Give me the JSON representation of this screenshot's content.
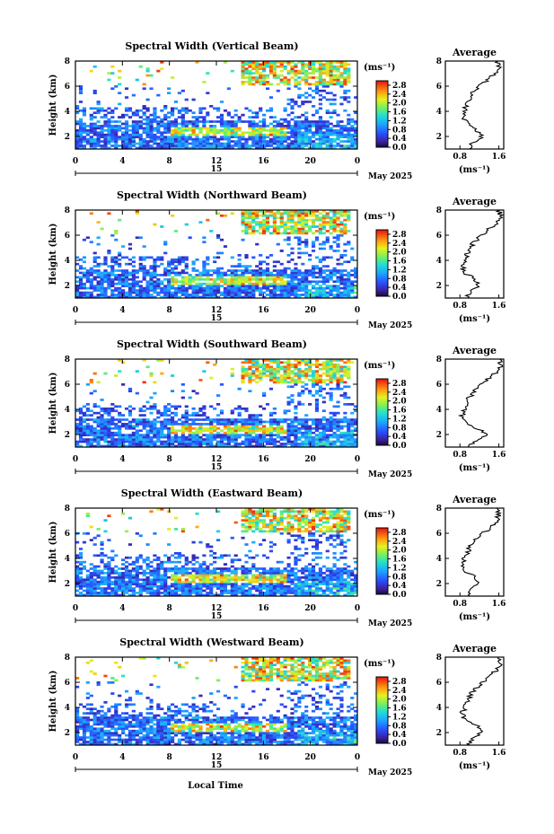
{
  "chart_data": {
    "type": "heatmap",
    "xlabel": "Local Time",
    "day_label": "15",
    "month_label": "May 2025",
    "x_ticks": [
      "0",
      "4",
      "8",
      "12",
      "16",
      "20",
      "0"
    ],
    "x_range": [
      0,
      24
    ],
    "y_range": [
      1,
      8
    ],
    "height_ticks": [
      "2",
      "4",
      "6",
      "8"
    ],
    "ylabel": "Height (km)",
    "colorbar": {
      "unit": "(ms⁻¹)",
      "ticks": [
        "0.0",
        "0.4",
        "0.8",
        "1.2",
        "1.6",
        "2.0",
        "2.4",
        "2.8"
      ],
      "range": [
        0,
        3.0
      ]
    },
    "average_panel": {
      "title": "Average",
      "x_ticks": [
        "0.8",
        "1.6"
      ],
      "x_range": [
        0.5,
        1.7
      ],
      "xlabel": "(ms⁻¹)",
      "y_ticks": [
        "2",
        "4",
        "6",
        "8"
      ]
    },
    "beams": [
      {
        "title": "Spectral Width (Vertical Beam)",
        "average_profile": {
          "height": [
            1.0,
            1.5,
            2.0,
            2.5,
            3.0,
            3.5,
            4.0,
            4.5,
            5.0,
            5.5,
            6.0,
            6.5,
            7.0,
            7.5,
            8.0
          ],
          "width": [
            0.98,
            1.05,
            1.25,
            1.15,
            0.95,
            0.85,
            0.88,
            0.92,
            0.98,
            1.05,
            1.2,
            1.35,
            1.5,
            1.6,
            1.55
          ]
        }
      },
      {
        "title": "Spectral Width (Northward Beam)",
        "average_profile": {
          "height": [
            1.0,
            1.5,
            2.0,
            2.5,
            3.0,
            3.5,
            4.0,
            4.5,
            5.0,
            5.5,
            6.0,
            6.5,
            7.0,
            7.5,
            8.0
          ],
          "width": [
            0.95,
            1.0,
            1.2,
            1.1,
            0.9,
            0.85,
            0.88,
            0.95,
            1.0,
            1.1,
            1.25,
            1.4,
            1.55,
            1.65,
            1.6
          ]
        }
      },
      {
        "title": "Spectral Width (Southward Beam)",
        "average_profile": {
          "height": [
            1.0,
            1.5,
            2.0,
            2.5,
            3.0,
            3.5,
            4.0,
            4.5,
            5.0,
            5.5,
            6.0,
            6.5,
            7.0,
            7.5,
            8.0
          ],
          "width": [
            0.95,
            1.1,
            1.4,
            1.15,
            0.9,
            0.85,
            0.9,
            0.95,
            1.0,
            1.1,
            1.25,
            1.4,
            1.55,
            1.65,
            1.6
          ]
        }
      },
      {
        "title": "Spectral Width (Eastward Beam)",
        "average_profile": {
          "height": [
            1.0,
            1.5,
            2.0,
            2.5,
            3.0,
            3.5,
            4.0,
            4.5,
            5.0,
            5.5,
            6.0,
            6.5,
            7.0,
            7.5,
            8.0
          ],
          "width": [
            0.98,
            1.05,
            1.2,
            1.1,
            0.92,
            0.85,
            0.9,
            0.95,
            1.02,
            1.12,
            1.28,
            1.42,
            1.55,
            1.6,
            1.55
          ]
        }
      },
      {
        "title": "Spectral Width (Westward Beam)",
        "average_profile": {
          "height": [
            1.0,
            1.5,
            2.0,
            2.5,
            3.0,
            3.5,
            4.0,
            4.5,
            5.0,
            5.5,
            6.0,
            6.5,
            7.0,
            7.5,
            8.0
          ],
          "width": [
            0.98,
            1.05,
            1.25,
            1.15,
            0.92,
            0.85,
            0.9,
            0.95,
            1.02,
            1.12,
            1.28,
            1.42,
            1.55,
            1.62,
            1.58
          ]
        }
      }
    ]
  }
}
